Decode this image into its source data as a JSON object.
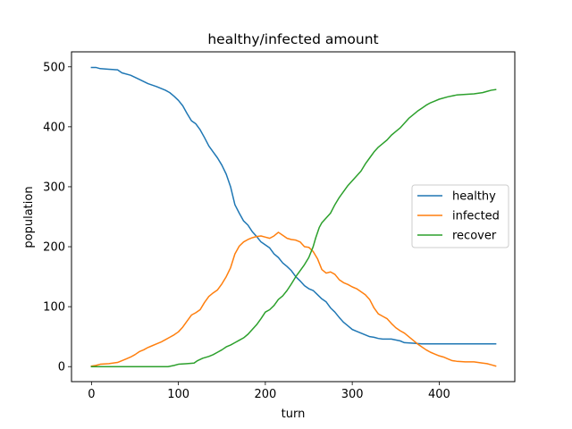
{
  "chart_data": {
    "type": "line",
    "title": "healthy/infected amount",
    "xlabel": "turn",
    "ylabel": "population",
    "xlim": [
      -23,
      487
    ],
    "ylim": [
      -25,
      525
    ],
    "xticks": [
      0,
      100,
      200,
      300,
      400
    ],
    "yticks": [
      0,
      100,
      200,
      300,
      400,
      500
    ],
    "grid": false,
    "legend_position": "center right",
    "series": [
      {
        "name": "healthy",
        "color": "#1f77b4",
        "points": [
          [
            0,
            499
          ],
          [
            5,
            499
          ],
          [
            10,
            497
          ],
          [
            20,
            496
          ],
          [
            30,
            495
          ],
          [
            35,
            490
          ],
          [
            45,
            486
          ],
          [
            55,
            479
          ],
          [
            65,
            472
          ],
          [
            75,
            467
          ],
          [
            85,
            461
          ],
          [
            90,
            457
          ],
          [
            95,
            451
          ],
          [
            100,
            444
          ],
          [
            105,
            435
          ],
          [
            110,
            422
          ],
          [
            115,
            410
          ],
          [
            120,
            405
          ],
          [
            125,
            395
          ],
          [
            130,
            382
          ],
          [
            135,
            368
          ],
          [
            140,
            358
          ],
          [
            145,
            348
          ],
          [
            150,
            336
          ],
          [
            155,
            321
          ],
          [
            160,
            300
          ],
          [
            165,
            270
          ],
          [
            170,
            256
          ],
          [
            175,
            243
          ],
          [
            180,
            236
          ],
          [
            185,
            225
          ],
          [
            190,
            217
          ],
          [
            195,
            208
          ],
          [
            200,
            203
          ],
          [
            205,
            198
          ],
          [
            210,
            188
          ],
          [
            215,
            182
          ],
          [
            220,
            173
          ],
          [
            225,
            167
          ],
          [
            230,
            160
          ],
          [
            235,
            150
          ],
          [
            240,
            143
          ],
          [
            245,
            135
          ],
          [
            250,
            130
          ],
          [
            255,
            127
          ],
          [
            260,
            120
          ],
          [
            265,
            113
          ],
          [
            270,
            108
          ],
          [
            275,
            98
          ],
          [
            280,
            91
          ],
          [
            285,
            82
          ],
          [
            290,
            74
          ],
          [
            295,
            68
          ],
          [
            300,
            62
          ],
          [
            305,
            59
          ],
          [
            310,
            56
          ],
          [
            315,
            53
          ],
          [
            320,
            50
          ],
          [
            325,
            49
          ],
          [
            330,
            47
          ],
          [
            335,
            46
          ],
          [
            345,
            46
          ],
          [
            355,
            43
          ],
          [
            360,
            40
          ],
          [
            370,
            39
          ],
          [
            380,
            38
          ],
          [
            400,
            38
          ],
          [
            420,
            38
          ],
          [
            440,
            38
          ],
          [
            465,
            38
          ]
        ]
      },
      {
        "name": "infected",
        "color": "#ff7f0e",
        "points": [
          [
            0,
            1
          ],
          [
            5,
            2
          ],
          [
            10,
            4
          ],
          [
            20,
            5
          ],
          [
            30,
            7
          ],
          [
            35,
            10
          ],
          [
            40,
            13
          ],
          [
            45,
            16
          ],
          [
            50,
            20
          ],
          [
            55,
            25
          ],
          [
            60,
            28
          ],
          [
            65,
            32
          ],
          [
            70,
            35
          ],
          [
            75,
            38
          ],
          [
            80,
            41
          ],
          [
            85,
            45
          ],
          [
            90,
            49
          ],
          [
            95,
            53
          ],
          [
            100,
            58
          ],
          [
            105,
            66
          ],
          [
            110,
            76
          ],
          [
            115,
            86
          ],
          [
            120,
            90
          ],
          [
            125,
            95
          ],
          [
            130,
            107
          ],
          [
            135,
            117
          ],
          [
            140,
            123
          ],
          [
            145,
            128
          ],
          [
            150,
            138
          ],
          [
            155,
            150
          ],
          [
            160,
            165
          ],
          [
            165,
            188
          ],
          [
            170,
            201
          ],
          [
            175,
            208
          ],
          [
            180,
            212
          ],
          [
            185,
            215
          ],
          [
            190,
            217
          ],
          [
            195,
            218
          ],
          [
            200,
            216
          ],
          [
            205,
            214
          ],
          [
            210,
            218
          ],
          [
            215,
            224
          ],
          [
            220,
            219
          ],
          [
            225,
            214
          ],
          [
            230,
            212
          ],
          [
            235,
            211
          ],
          [
            240,
            208
          ],
          [
            245,
            200
          ],
          [
            250,
            199
          ],
          [
            255,
            192
          ],
          [
            260,
            180
          ],
          [
            265,
            162
          ],
          [
            270,
            156
          ],
          [
            275,
            158
          ],
          [
            280,
            154
          ],
          [
            285,
            145
          ],
          [
            290,
            140
          ],
          [
            295,
            137
          ],
          [
            300,
            133
          ],
          [
            305,
            130
          ],
          [
            310,
            125
          ],
          [
            315,
            120
          ],
          [
            320,
            112
          ],
          [
            325,
            98
          ],
          [
            330,
            88
          ],
          [
            335,
            84
          ],
          [
            340,
            80
          ],
          [
            345,
            72
          ],
          [
            350,
            65
          ],
          [
            355,
            60
          ],
          [
            360,
            56
          ],
          [
            365,
            50
          ],
          [
            370,
            44
          ],
          [
            375,
            38
          ],
          [
            380,
            33
          ],
          [
            385,
            28
          ],
          [
            390,
            24
          ],
          [
            395,
            21
          ],
          [
            400,
            18
          ],
          [
            405,
            16
          ],
          [
            410,
            13
          ],
          [
            415,
            10
          ],
          [
            420,
            9
          ],
          [
            430,
            8
          ],
          [
            440,
            8
          ],
          [
            450,
            6
          ],
          [
            455,
            5
          ],
          [
            460,
            3
          ],
          [
            465,
            1
          ]
        ]
      },
      {
        "name": "recover",
        "color": "#2ca02c",
        "points": [
          [
            0,
            0
          ],
          [
            20,
            0
          ],
          [
            40,
            0
          ],
          [
            60,
            0
          ],
          [
            80,
            0
          ],
          [
            88,
            0
          ],
          [
            95,
            2
          ],
          [
            100,
            4
          ],
          [
            110,
            5
          ],
          [
            118,
            6
          ],
          [
            122,
            10
          ],
          [
            128,
            14
          ],
          [
            135,
            17
          ],
          [
            140,
            20
          ],
          [
            145,
            24
          ],
          [
            150,
            28
          ],
          [
            155,
            33
          ],
          [
            160,
            36
          ],
          [
            165,
            40
          ],
          [
            170,
            44
          ],
          [
            175,
            48
          ],
          [
            180,
            54
          ],
          [
            185,
            62
          ],
          [
            190,
            70
          ],
          [
            195,
            80
          ],
          [
            200,
            91
          ],
          [
            205,
            95
          ],
          [
            210,
            102
          ],
          [
            215,
            112
          ],
          [
            220,
            118
          ],
          [
            225,
            127
          ],
          [
            230,
            138
          ],
          [
            235,
            150
          ],
          [
            240,
            160
          ],
          [
            245,
            170
          ],
          [
            250,
            182
          ],
          [
            255,
            200
          ],
          [
            258,
            215
          ],
          [
            262,
            232
          ],
          [
            265,
            240
          ],
          [
            270,
            248
          ],
          [
            275,
            256
          ],
          [
            280,
            270
          ],
          [
            285,
            282
          ],
          [
            290,
            292
          ],
          [
            295,
            302
          ],
          [
            300,
            310
          ],
          [
            305,
            318
          ],
          [
            310,
            326
          ],
          [
            315,
            338
          ],
          [
            320,
            348
          ],
          [
            325,
            358
          ],
          [
            330,
            366
          ],
          [
            335,
            372
          ],
          [
            340,
            378
          ],
          [
            345,
            386
          ],
          [
            350,
            392
          ],
          [
            355,
            398
          ],
          [
            360,
            406
          ],
          [
            365,
            414
          ],
          [
            370,
            420
          ],
          [
            375,
            426
          ],
          [
            380,
            431
          ],
          [
            385,
            436
          ],
          [
            390,
            440
          ],
          [
            395,
            443
          ],
          [
            400,
            446
          ],
          [
            410,
            450
          ],
          [
            420,
            453
          ],
          [
            430,
            454
          ],
          [
            440,
            455
          ],
          [
            450,
            457
          ],
          [
            455,
            459
          ],
          [
            460,
            461
          ],
          [
            465,
            462
          ]
        ]
      }
    ]
  }
}
